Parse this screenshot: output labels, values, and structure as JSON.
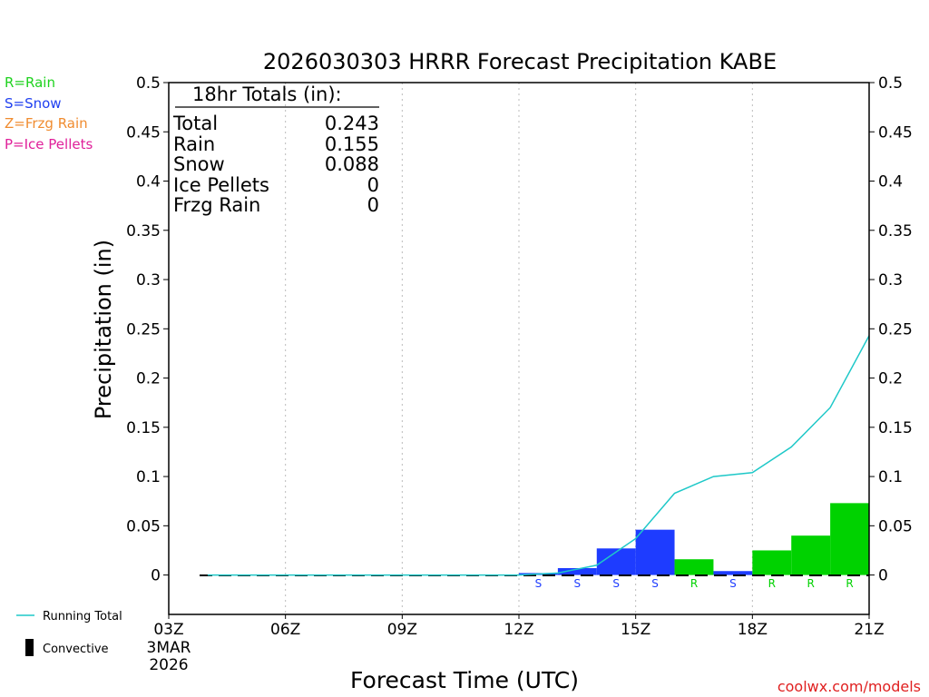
{
  "title": "2026030303 HRRR Forecast Precipitation KABE",
  "credit": "coolwx.com/models",
  "ptype_legend": [
    {
      "text": "R=Rain",
      "color": "#1ed21e"
    },
    {
      "text": "S=Snow",
      "color": "#2040f0"
    },
    {
      "text": "Z=Frzg Rain",
      "color": "#f08c30"
    },
    {
      "text": "P=Ice Pellets",
      "color": "#e0209a"
    }
  ],
  "series_legend": {
    "running_total": "Running Total",
    "convective": "Convective"
  },
  "totals_box": {
    "heading": "18hr Totals (in):",
    "rows": [
      {
        "label": "Total",
        "value": "0.243"
      },
      {
        "label": "Rain",
        "value": "0.155"
      },
      {
        "label": "Snow",
        "value": "0.088"
      },
      {
        "label": "Ice Pellets",
        "value": "0"
      },
      {
        "label": "Frzg Rain",
        "value": "0"
      }
    ]
  },
  "chart_data": {
    "type": "bar",
    "title": "2026030303 HRRR Forecast Precipitation KABE",
    "xlabel": "Forecast Time (UTC)",
    "ylabel": "Precipitation (in)",
    "xlim": [
      0,
      18
    ],
    "ylim": [
      -0.04,
      0.5
    ],
    "x_ticks": [
      {
        "x": 0,
        "label": "03Z",
        "sub": [
          "3MAR",
          "2026"
        ]
      },
      {
        "x": 3,
        "label": "06Z"
      },
      {
        "x": 6,
        "label": "09Z"
      },
      {
        "x": 9,
        "label": "12Z"
      },
      {
        "x": 12,
        "label": "15Z"
      },
      {
        "x": 15,
        "label": "18Z"
      },
      {
        "x": 18,
        "label": "21Z"
      }
    ],
    "y_ticks": [
      0,
      0.05,
      0.1,
      0.15,
      0.2,
      0.25,
      0.3,
      0.35,
      0.4,
      0.45,
      0.5
    ],
    "y_tick_labels": [
      "0",
      "0.05",
      "0.1",
      "0.15",
      "0.2",
      "0.25",
      "0.3",
      "0.35",
      "0.4",
      "0.45",
      "0.5"
    ],
    "grid": "vertical dotted at x ticks",
    "hourly_bars": [
      {
        "hour": 10,
        "value": 0.002,
        "ptype": "S"
      },
      {
        "hour": 11,
        "value": 0.007,
        "ptype": "S"
      },
      {
        "hour": 12,
        "value": 0.027,
        "ptype": "S"
      },
      {
        "hour": 13,
        "value": 0.046,
        "ptype": "S"
      },
      {
        "hour": 14,
        "value": 0.016,
        "ptype": "R"
      },
      {
        "hour": 15,
        "value": 0.004,
        "ptype": "S"
      },
      {
        "hour": 16,
        "value": 0.025,
        "ptype": "R"
      },
      {
        "hour": 17,
        "value": 0.04,
        "ptype": "R"
      },
      {
        "hour": 18,
        "value": 0.073,
        "ptype": "R"
      }
    ],
    "running_total": {
      "name": "Running Total",
      "x": [
        1,
        2,
        3,
        4,
        5,
        6,
        7,
        8,
        9,
        10,
        11,
        12,
        13,
        14,
        15,
        16,
        17,
        18
      ],
      "y": [
        0,
        0,
        0,
        0,
        0,
        0,
        0,
        0,
        0,
        0.002,
        0.01,
        0.037,
        0.083,
        0.1,
        0.104,
        0.13,
        0.17,
        0.243
      ]
    },
    "colors": {
      "R": "#00d200",
      "S": "#1e3cff",
      "line": "#1ec8c8",
      "grid": "#bbbbbb"
    }
  }
}
